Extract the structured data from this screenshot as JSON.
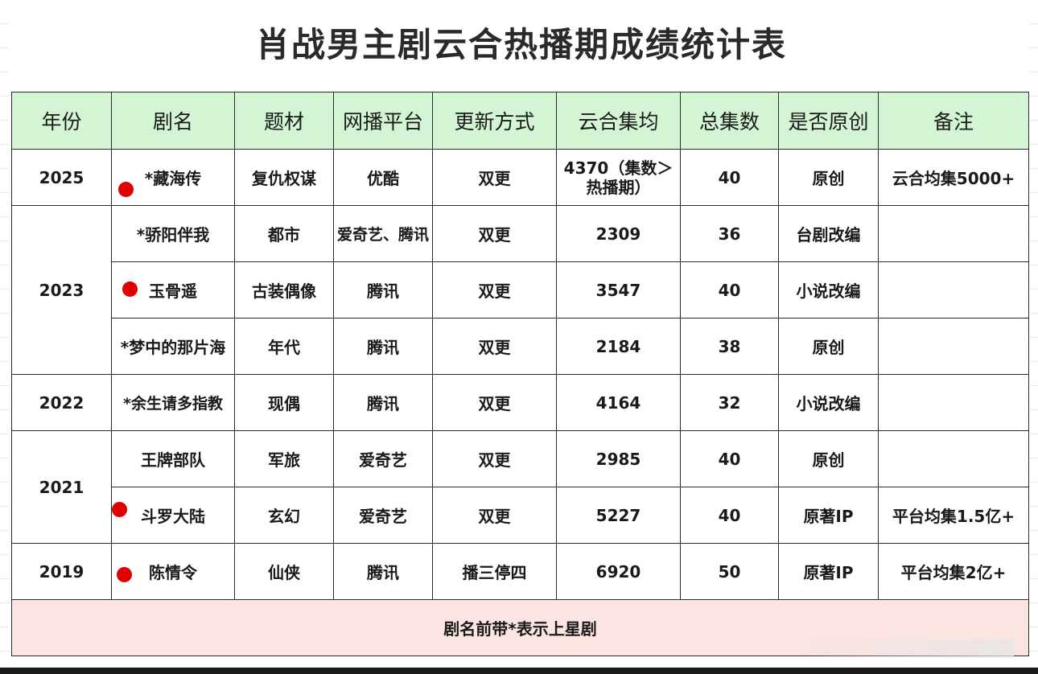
{
  "title": "肖战男主剧云合热播期成绩统计表",
  "headers": [
    "年份",
    "剧名",
    "题材",
    "网播平台",
    "更新方式",
    "云合集均",
    "总集数",
    "是否原创",
    "备注"
  ],
  "rows": [
    {
      "year": "2025",
      "name": "*藏海传",
      "genre": "复仇权谋",
      "platform": "优酷",
      "update": "双更",
      "avg": "4370（集数＞热播期）",
      "episodes": "40",
      "original": "原创",
      "note": "云合均集5000+"
    },
    {
      "name": "*骄阳伴我",
      "genre": "都市",
      "platform": "爱奇艺、腾讯",
      "update": "双更",
      "avg": "2309",
      "episodes": "36",
      "original": "台剧改编",
      "note": ""
    },
    {
      "year": "2023",
      "name": "玉骨遥",
      "genre": "古装偶像",
      "platform": "腾讯",
      "update": "双更",
      "avg": "3547",
      "episodes": "40",
      "original": "小说改编",
      "note": ""
    },
    {
      "name": "*梦中的那片海",
      "genre": "年代",
      "platform": "腾讯",
      "update": "双更",
      "avg": "2184",
      "episodes": "38",
      "original": "原创",
      "note": ""
    },
    {
      "year": "2022",
      "name": "*余生请多指教",
      "genre": "现偶",
      "platform": "腾讯",
      "update": "双更",
      "avg": "4164",
      "episodes": "32",
      "original": "小说改编",
      "note": ""
    },
    {
      "name": "王牌部队",
      "genre": "军旅",
      "platform": "爱奇艺",
      "update": "双更",
      "avg": "2985",
      "episodes": "40",
      "original": "原创",
      "note": ""
    },
    {
      "year": "2021",
      "name": "斗罗大陆",
      "genre": "玄幻",
      "platform": "爱奇艺",
      "update": "双更",
      "avg": "5227",
      "episodes": "40",
      "original": "原著IP",
      "note": "平台均集1.5亿+"
    },
    {
      "year": "2019",
      "name": "陈情令",
      "genre": "仙侠",
      "platform": "腾讯",
      "update": "播三停四",
      "avg": "6920",
      "episodes": "50",
      "original": "原著IP",
      "note": "平台均集2亿+"
    }
  ],
  "footnote": "剧名前带*表示上星剧",
  "colors": {
    "header_bg": "#d4f5d3",
    "footer_bg": "#fbe4e2",
    "original_text": "#8a4a14",
    "marker_dot": "#e00000"
  }
}
